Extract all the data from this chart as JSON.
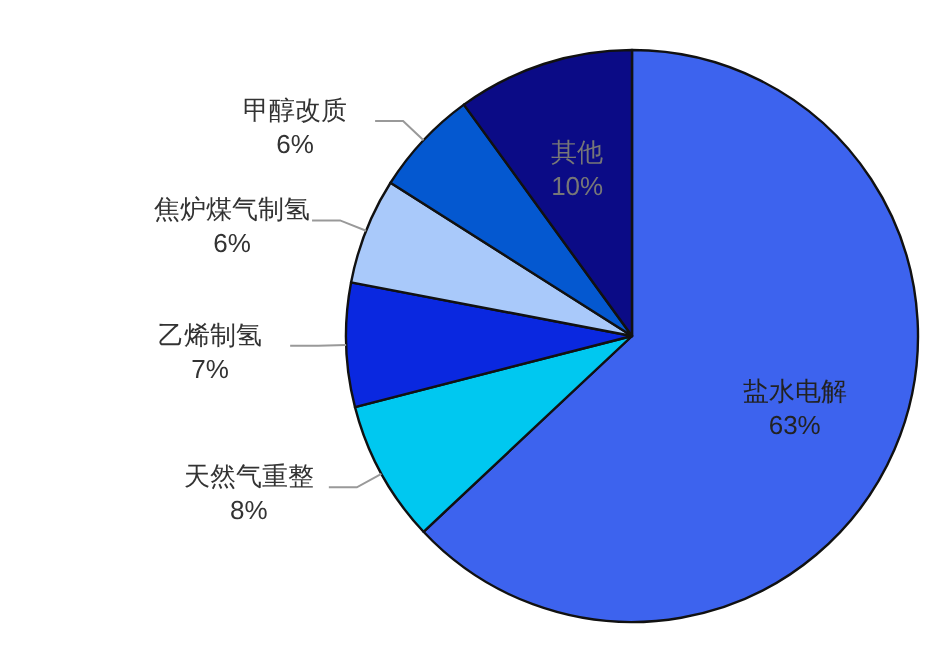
{
  "chart_data": {
    "type": "pie",
    "categories": [
      "盐水电解",
      "天然气重整",
      "乙烯制氢",
      "焦炉煤气制氢",
      "甲醇改质",
      "其他"
    ],
    "values": [
      63,
      8,
      7,
      6,
      6,
      10
    ],
    "colors": [
      "#3d63ee",
      "#00c8f0",
      "#0a28e0",
      "#a9c9fa",
      "#0458d0",
      "#0b0b86"
    ],
    "value_labels": [
      "63%",
      "8%",
      "7%",
      "6%",
      "6%",
      "10%"
    ]
  }
}
